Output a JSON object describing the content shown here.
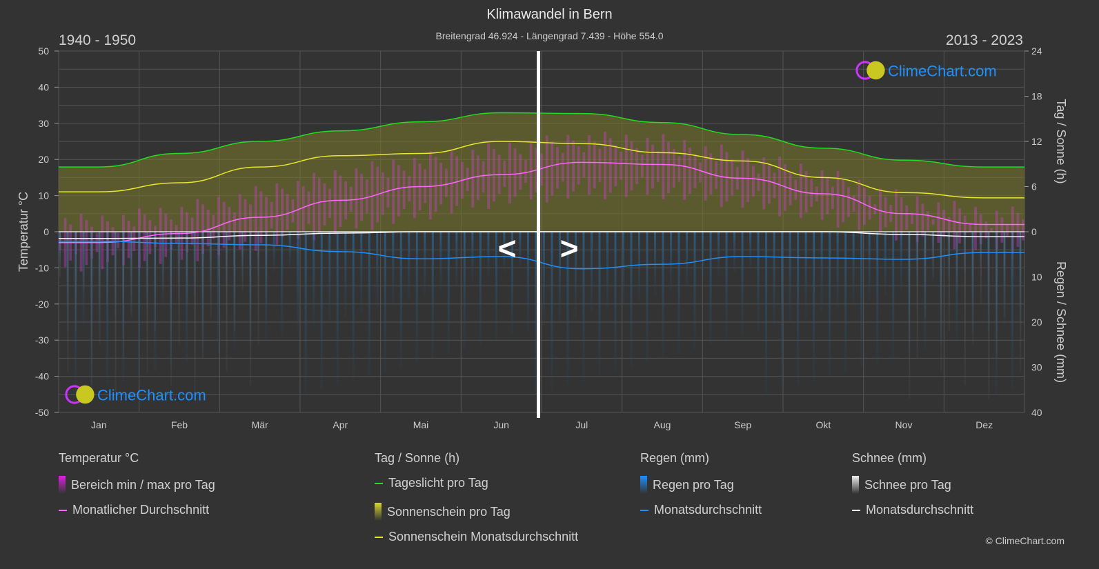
{
  "header": {
    "title": "Klimawandel in Bern",
    "subtitle": "Breitengrad 46.924 - Längengrad 7.439 - Höhe 554.0",
    "period_left": "1940 - 1950",
    "period_right": "2013 - 2023",
    "nav_prev": "<",
    "nav_next": ">"
  },
  "logo": {
    "text": "ClimeChart.com"
  },
  "chart_data": {
    "type": "line",
    "categories": [
      "Jan",
      "Feb",
      "Mär",
      "Apr",
      "Mai",
      "Jun",
      "Jul",
      "Aug",
      "Sep",
      "Okt",
      "Nov",
      "Dez"
    ],
    "y_left": {
      "label": "Temperatur °C",
      "range": [
        -50,
        50
      ],
      "ticks": [
        50,
        40,
        30,
        20,
        10,
        0,
        -10,
        -20,
        -30,
        -40,
        -50
      ]
    },
    "y_right_top": {
      "label": "Tag / Sonne (h)",
      "range": [
        0,
        24
      ],
      "ticks": [
        24,
        18,
        12,
        6,
        0
      ]
    },
    "y_right_bottom": {
      "label": "Regen / Schnee (mm)",
      "range": [
        0,
        40
      ],
      "ticks": [
        10,
        20,
        30,
        40
      ]
    },
    "grid": true,
    "colors": {
      "temp_avg": "#ff66ff",
      "temp_range": "#e040e0",
      "daylight": "#22dd22",
      "sunshine_avg": "#e8e82a",
      "sunshine": "#8a8a30",
      "rain": "#1e90ff",
      "rain_bars": "#2a5a80",
      "snow": "#ffffff"
    },
    "series": [
      {
        "name": "Monatlicher Durchschnitt",
        "axis": "temperature",
        "values": [
          -3,
          -0.5,
          4,
          8.7,
          12.5,
          15.8,
          19.2,
          18.6,
          14.8,
          10.5,
          5,
          2
        ]
      },
      {
        "name": "Bereich min / max pro Tag",
        "axis": "temperature",
        "min": [
          -8,
          -6,
          -2,
          2,
          6,
          10,
          12,
          12,
          9,
          5,
          0,
          -3
        ],
        "max": [
          2,
          5,
          10,
          15,
          19,
          22,
          25,
          24,
          20,
          15,
          8,
          4
        ]
      },
      {
        "name": "Tageslicht pro Tag",
        "axis": "hours",
        "values": [
          8.6,
          10.4,
          12.0,
          13.4,
          14.6,
          15.8,
          15.7,
          14.5,
          12.9,
          11.1,
          9.5,
          8.6
        ]
      },
      {
        "name": "Sonnenschein Monatsdurchschnitt",
        "axis": "hours",
        "values": [
          5.3,
          6.5,
          8.6,
          10.1,
          10.4,
          12.0,
          11.7,
          10.5,
          9.4,
          7.2,
          5.2,
          4.5
        ]
      },
      {
        "name": "Regen Monatsdurchschnitt",
        "axis": "rain_mm",
        "values": [
          2.1,
          2.6,
          2.9,
          4.4,
          6.0,
          5.5,
          8.2,
          7.2,
          5.5,
          5.8,
          6.1,
          4.6
        ]
      },
      {
        "name": "Schnee Monatsdurchschnitt",
        "axis": "rain_mm",
        "values": [
          1.5,
          1.4,
          0.8,
          0.3,
          0,
          0,
          0,
          0,
          0,
          0,
          0.6,
          1.1
        ]
      }
    ]
  },
  "legend": {
    "groups": [
      {
        "title": "Temperatur °C",
        "items": [
          {
            "label": "Bereich min / max pro Tag",
            "swatch": "bar",
            "color": "#e020e0"
          },
          {
            "label": "Monatlicher Durchschnitt",
            "swatch": "line",
            "color": "#ff66ff"
          }
        ]
      },
      {
        "title": "Tag / Sonne (h)",
        "items": [
          {
            "label": "Tageslicht pro Tag",
            "swatch": "line",
            "color": "#22dd22"
          },
          {
            "label": "Sonnenschein pro Tag",
            "swatch": "bar",
            "color": "#d8d830"
          },
          {
            "label": "Sonnenschein Monatsdurchschnitt",
            "swatch": "line",
            "color": "#e8e82a"
          }
        ]
      },
      {
        "title": "Regen (mm)",
        "items": [
          {
            "label": "Regen pro Tag",
            "swatch": "bar",
            "color": "#1e90ff"
          },
          {
            "label": "Monatsdurchschnitt",
            "swatch": "line",
            "color": "#1e90ff"
          }
        ]
      },
      {
        "title": "Schnee (mm)",
        "items": [
          {
            "label": "Schnee pro Tag",
            "swatch": "bar",
            "color": "#eeeeee"
          },
          {
            "label": "Monatsdurchschnitt",
            "swatch": "line",
            "color": "#ffffff"
          }
        ]
      }
    ]
  },
  "copyright": "© ClimeChart.com"
}
